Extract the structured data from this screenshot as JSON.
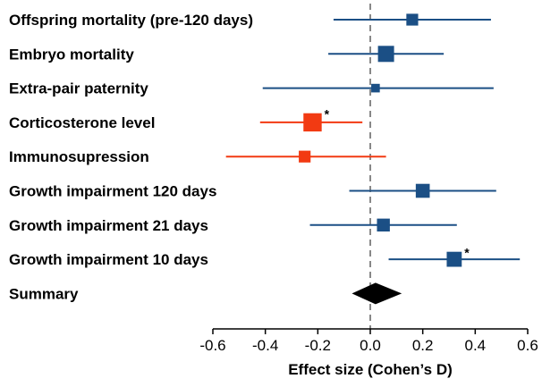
{
  "chart_data": {
    "type": "forest",
    "xlabel": "Effect size (Cohen’s D)",
    "xlim": [
      -0.6,
      0.6
    ],
    "xticks": [
      "-0.6",
      "-0.4",
      "-0.2",
      "0.0",
      "0.2",
      "0.4",
      "0.6"
    ],
    "reference_line": 0.0,
    "colors": {
      "default": "#1b4f85",
      "highlight": "#f23a12",
      "summary": "#000000",
      "reference": "#888888"
    },
    "rows": [
      {
        "label": "Offspring mortality (pre-120 days)",
        "estimate": 0.16,
        "lower": -0.14,
        "upper": 0.46,
        "weight": 0.55,
        "color": "default",
        "significant": false
      },
      {
        "label": "Embryo mortality",
        "estimate": 0.06,
        "lower": -0.16,
        "upper": 0.28,
        "weight": 0.75,
        "color": "default",
        "significant": false
      },
      {
        "label": "Extra-pair paternity",
        "estimate": 0.02,
        "lower": -0.41,
        "upper": 0.47,
        "weight": 0.4,
        "color": "default",
        "significant": false
      },
      {
        "label": "Corticosterone level",
        "estimate": -0.22,
        "lower": -0.42,
        "upper": -0.03,
        "weight": 0.85,
        "color": "highlight",
        "significant": true
      },
      {
        "label": "Immunosupression",
        "estimate": -0.25,
        "lower": -0.55,
        "upper": 0.06,
        "weight": 0.55,
        "color": "highlight",
        "significant": false
      },
      {
        "label": "Growth impairment 120 days",
        "estimate": 0.2,
        "lower": -0.08,
        "upper": 0.48,
        "weight": 0.65,
        "color": "default",
        "significant": false
      },
      {
        "label": "Growth impairment 21 days",
        "estimate": 0.05,
        "lower": -0.23,
        "upper": 0.33,
        "weight": 0.6,
        "color": "default",
        "significant": false
      },
      {
        "label": "Growth impairment 10 days",
        "estimate": 0.32,
        "lower": 0.07,
        "upper": 0.57,
        "weight": 0.7,
        "color": "default",
        "significant": true
      }
    ],
    "summary": {
      "label": "Summary",
      "estimate": 0.02,
      "lower": -0.07,
      "upper": 0.12
    },
    "significance_marker": "*"
  }
}
